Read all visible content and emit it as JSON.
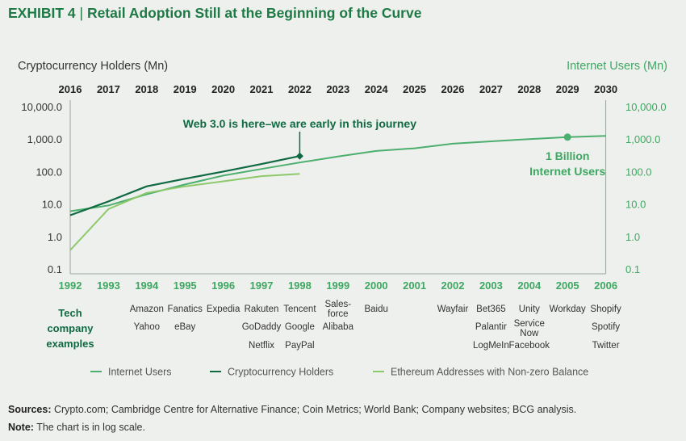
{
  "title": {
    "exhibit": "EXHIBIT 4",
    "sep": "|",
    "text": "Retail Adoption Still at the Beginning of the Curve"
  },
  "chart_data": {
    "type": "line",
    "y_scale": "log",
    "ylim": [
      0.1,
      10000
    ],
    "y_ticks": [
      "0.1",
      "1.0",
      "10.0",
      "100.0",
      "1,000.0",
      "10,000.0"
    ],
    "left_axis_label": "Cryptocurrency Holders (Mn)",
    "right_axis_label": "Internet Users (Mn)",
    "x_top": [
      "2016",
      "2017",
      "2018",
      "2019",
      "2020",
      "2021",
      "2022",
      "2023",
      "2024",
      "2025",
      "2026",
      "2027",
      "2028",
      "2029",
      "2030"
    ],
    "x_bottom": [
      "1992",
      "1993",
      "1994",
      "1995",
      "1996",
      "1997",
      "1998",
      "1999",
      "2000",
      "2001",
      "2002",
      "2003",
      "2004",
      "2005",
      "2006"
    ],
    "series": [
      {
        "name": "Internet Users",
        "color": "#4caf6e",
        "x_index": [
          0,
          1,
          2,
          3,
          4,
          5,
          6,
          7,
          8,
          9,
          10,
          11,
          12,
          13,
          14
        ],
        "values": [
          6,
          9,
          20,
          40,
          75,
          120,
          190,
          290,
          430,
          520,
          720,
          850,
          1000,
          1150,
          1250
        ]
      },
      {
        "name": "Cryptocurrency Holders",
        "color": "#0f6a42",
        "x_index": [
          0,
          1,
          2,
          3,
          4,
          5,
          6
        ],
        "values": [
          4.5,
          12,
          35,
          60,
          100,
          170,
          300
        ]
      },
      {
        "name": "Ethereum Addresses with Non-zero Balance",
        "color": "#8dc96b",
        "x_index": [
          0,
          1,
          2,
          3,
          4,
          5,
          6
        ],
        "values": [
          0.38,
          7,
          22,
          35,
          50,
          72,
          85
        ]
      }
    ],
    "annotations": [
      {
        "text": "Web 3.0 is here–we are early in this journey",
        "x_index": 6,
        "y": 300
      },
      {
        "text": "1 Billion",
        "text2": "Internet Users",
        "x_index": 13,
        "y": 1150
      }
    ],
    "tech_label": [
      "Tech",
      "company",
      "examples"
    ],
    "tech_examples": [
      [],
      [],
      [
        "Amazon",
        "Yahoo"
      ],
      [
        "Fanatics",
        "eBay"
      ],
      [
        "Expedia"
      ],
      [
        "Rakuten",
        "GoDaddy",
        "Netflix"
      ],
      [
        "Tencent",
        "Google",
        "PayPal"
      ],
      [
        "Sales-",
        "force",
        "Alibaba"
      ],
      [
        "Baidu"
      ],
      [],
      [
        "Wayfair"
      ],
      [
        "Bet365",
        "Palantir",
        "LogMeIn"
      ],
      [
        "Unity",
        "Service",
        "Now",
        "Facebook"
      ],
      [
        "Workday"
      ],
      [
        "Shopify",
        "Spotify",
        "Twitter"
      ]
    ]
  },
  "sources_label": "Sources:",
  "sources_text": " Crypto.com; Cambridge Centre for Alternative Finance; Coin Metrics; World Bank; Company websites; BCG analysis.",
  "note_label": "Note:",
  "note_text": " The chart is in log scale."
}
